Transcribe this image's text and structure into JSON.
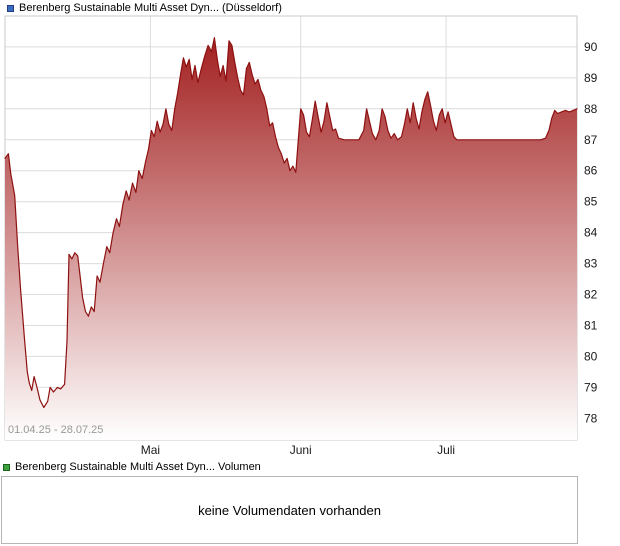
{
  "colors": {
    "line": "#8e1111",
    "fill_top": "#9e1414",
    "fill_bottom": "#ffffff",
    "grid": "#dcdcdc",
    "plot_border": "#c9c9c9",
    "axis_text": "#1a1a1a",
    "date_range_text": "#999999",
    "price_marker_fill": "#3b6cc0",
    "price_marker_border": "#1f3d80",
    "volume_marker_fill": "#3fa03f",
    "volume_marker_border": "#1c641c",
    "volume_box_border": "#b5b5b5"
  },
  "price_panel": {
    "legend_label": "Berenberg Sustainable Multi Asset Dyn... (Düsseldorf)",
    "date_range": "01.04.25 - 28.07.25"
  },
  "volume_panel": {
    "legend_label": "Berenberg Sustainable Multi Asset Dyn... Volumen",
    "message": "keine Volumendaten vorhanden"
  },
  "chart_data": {
    "type": "area",
    "title": "Berenberg Sustainable Multi Asset Dyn... (Düsseldorf)",
    "series_name": "Berenberg Sustainable Multi Asset Dyn...",
    "xlabel": "",
    "ylabel": "",
    "x_unit": "days since 01.04.25",
    "date_range": "01.04.25 - 28.07.25",
    "grid": true,
    "legend_position": "top-left",
    "xlim": [
      0,
      118
    ],
    "ylim": [
      77.3,
      91.0
    ],
    "y_ticks": [
      78,
      79,
      80,
      81,
      82,
      83,
      84,
      85,
      86,
      87,
      88,
      89,
      90
    ],
    "x_ticks": [
      {
        "label": "Mai",
        "day": 30
      },
      {
        "label": "Juni",
        "day": 61
      },
      {
        "label": "Juli",
        "day": 91
      }
    ],
    "points": [
      [
        0,
        86.4
      ],
      [
        0.7,
        86.55
      ],
      [
        1.2,
        85.9
      ],
      [
        2,
        85.2
      ],
      [
        2.6,
        83.6
      ],
      [
        3.2,
        82.2
      ],
      [
        4,
        80.6
      ],
      [
        4.6,
        79.5
      ],
      [
        5,
        79.15
      ],
      [
        5.5,
        78.9
      ],
      [
        6,
        79.35
      ],
      [
        6.6,
        79.0
      ],
      [
        7.2,
        78.6
      ],
      [
        8,
        78.35
      ],
      [
        8.8,
        78.55
      ],
      [
        9.3,
        79.0
      ],
      [
        10,
        78.85
      ],
      [
        10.8,
        79.0
      ],
      [
        11.5,
        78.95
      ],
      [
        12.3,
        79.1
      ],
      [
        12.8,
        80.5
      ],
      [
        13.2,
        83.3
      ],
      [
        13.8,
        83.15
      ],
      [
        14.4,
        83.35
      ],
      [
        15,
        83.25
      ],
      [
        15.5,
        82.6
      ],
      [
        16,
        81.9
      ],
      [
        16.6,
        81.45
      ],
      [
        17.2,
        81.3
      ],
      [
        17.8,
        81.6
      ],
      [
        18.4,
        81.45
      ],
      [
        19,
        82.6
      ],
      [
        19.6,
        82.4
      ],
      [
        20.3,
        83.0
      ],
      [
        21,
        83.55
      ],
      [
        21.6,
        83.35
      ],
      [
        22.3,
        84.0
      ],
      [
        23,
        84.45
      ],
      [
        23.6,
        84.2
      ],
      [
        24.3,
        84.9
      ],
      [
        25,
        85.35
      ],
      [
        25.6,
        85.05
      ],
      [
        26.3,
        85.6
      ],
      [
        27,
        85.3
      ],
      [
        27.6,
        86.0
      ],
      [
        28.3,
        85.75
      ],
      [
        29,
        86.3
      ],
      [
        29.6,
        86.7
      ],
      [
        30.2,
        87.3
      ],
      [
        30.8,
        87.1
      ],
      [
        31.4,
        87.6
      ],
      [
        32,
        87.25
      ],
      [
        32.6,
        87.5
      ],
      [
        33.2,
        88.0
      ],
      [
        33.8,
        87.5
      ],
      [
        34.4,
        87.3
      ],
      [
        35,
        88.0
      ],
      [
        35.6,
        88.5
      ],
      [
        36.2,
        89.1
      ],
      [
        36.8,
        89.65
      ],
      [
        37.4,
        89.35
      ],
      [
        38,
        89.6
      ],
      [
        38.6,
        88.95
      ],
      [
        39.2,
        89.4
      ],
      [
        39.8,
        88.85
      ],
      [
        40.5,
        89.3
      ],
      [
        41.2,
        89.7
      ],
      [
        41.9,
        90.05
      ],
      [
        42.6,
        89.85
      ],
      [
        43.2,
        90.3
      ],
      [
        43.8,
        89.6
      ],
      [
        44.4,
        89.05
      ],
      [
        45,
        89.4
      ],
      [
        45.6,
        88.9
      ],
      [
        46.2,
        90.2
      ],
      [
        46.8,
        90.05
      ],
      [
        47.4,
        89.5
      ],
      [
        48,
        89.0
      ],
      [
        48.6,
        88.6
      ],
      [
        49.2,
        88.45
      ],
      [
        49.8,
        89.3
      ],
      [
        50.4,
        89.5
      ],
      [
        51,
        89.1
      ],
      [
        51.6,
        88.8
      ],
      [
        52.2,
        88.95
      ],
      [
        52.8,
        88.6
      ],
      [
        53.4,
        88.4
      ],
      [
        54,
        88.0
      ],
      [
        54.6,
        87.45
      ],
      [
        55.2,
        87.55
      ],
      [
        55.8,
        87.1
      ],
      [
        56.4,
        86.75
      ],
      [
        57,
        86.55
      ],
      [
        57.6,
        86.25
      ],
      [
        58.2,
        86.4
      ],
      [
        58.8,
        86.0
      ],
      [
        59.4,
        86.15
      ],
      [
        60,
        85.95
      ],
      [
        60.5,
        87.0
      ],
      [
        61,
        88.0
      ],
      [
        61.6,
        87.8
      ],
      [
        62.2,
        87.25
      ],
      [
        62.8,
        87.1
      ],
      [
        63.4,
        87.65
      ],
      [
        64,
        88.25
      ],
      [
        64.6,
        87.75
      ],
      [
        65.2,
        87.25
      ],
      [
        65.8,
        87.6
      ],
      [
        66.4,
        88.2
      ],
      [
        67,
        87.75
      ],
      [
        67.6,
        87.3
      ],
      [
        68.2,
        87.35
      ],
      [
        68.8,
        87.05
      ],
      [
        70,
        87.0
      ],
      [
        71.5,
        87.0
      ],
      [
        73,
        87.0
      ],
      [
        74,
        87.3
      ],
      [
        74.6,
        88.0
      ],
      [
        75.2,
        87.6
      ],
      [
        75.8,
        87.2
      ],
      [
        76.5,
        87.0
      ],
      [
        77.2,
        87.3
      ],
      [
        77.8,
        88.0
      ],
      [
        78.4,
        87.75
      ],
      [
        79,
        87.3
      ],
      [
        79.6,
        87.05
      ],
      [
        80.3,
        87.2
      ],
      [
        81,
        87.0
      ],
      [
        81.8,
        87.1
      ],
      [
        82.4,
        87.5
      ],
      [
        83,
        88.0
      ],
      [
        83.6,
        87.55
      ],
      [
        84.2,
        88.2
      ],
      [
        84.8,
        87.7
      ],
      [
        85.4,
        87.35
      ],
      [
        86,
        87.9
      ],
      [
        86.6,
        88.3
      ],
      [
        87.2,
        88.55
      ],
      [
        87.8,
        88.1
      ],
      [
        88.4,
        87.6
      ],
      [
        89,
        87.3
      ],
      [
        89.6,
        87.8
      ],
      [
        90.2,
        88.0
      ],
      [
        90.8,
        87.55
      ],
      [
        91.4,
        87.9
      ],
      [
        92,
        87.5
      ],
      [
        92.6,
        87.1
      ],
      [
        93.2,
        87.0
      ],
      [
        95,
        87.0
      ],
      [
        97,
        87.0
      ],
      [
        99,
        87.0
      ],
      [
        101,
        87.0
      ],
      [
        103,
        87.0
      ],
      [
        105,
        87.0
      ],
      [
        107,
        87.0
      ],
      [
        109,
        87.0
      ],
      [
        110.5,
        87.0
      ],
      [
        111.5,
        87.05
      ],
      [
        112.2,
        87.3
      ],
      [
        112.8,
        87.7
      ],
      [
        113.4,
        87.95
      ],
      [
        114,
        87.85
      ],
      [
        114.8,
        87.9
      ],
      [
        115.6,
        87.95
      ],
      [
        116.4,
        87.9
      ],
      [
        117.2,
        87.95
      ],
      [
        118,
        88.0
      ]
    ]
  }
}
